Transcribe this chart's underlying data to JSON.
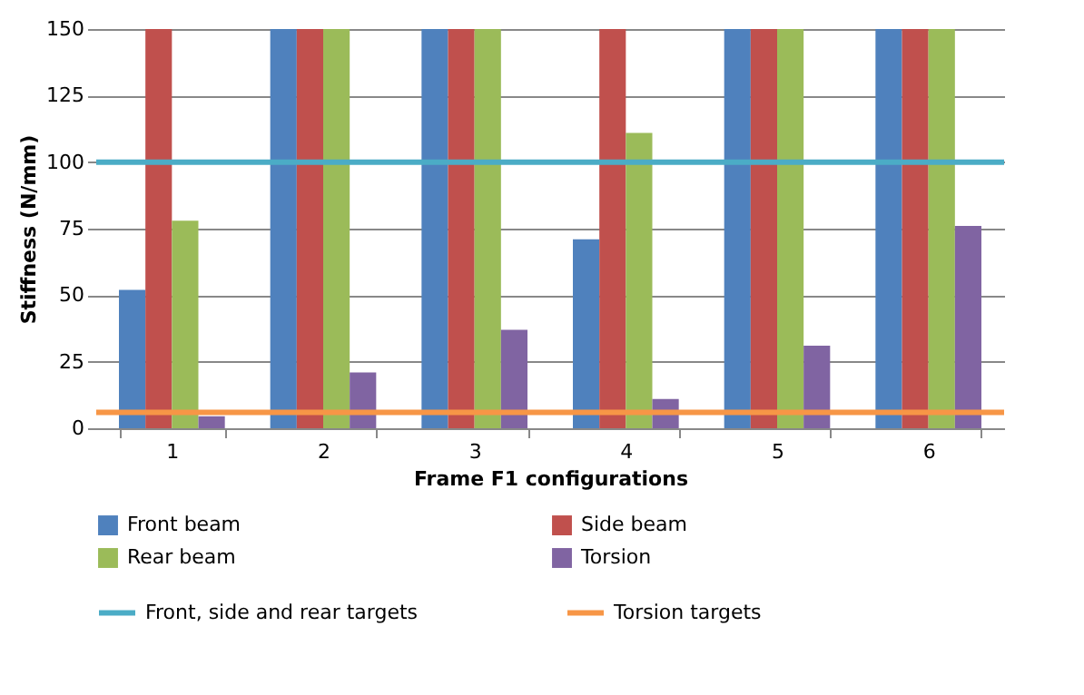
{
  "chart_data": {
    "type": "bar",
    "xlabel": "Frame F1 configurations",
    "ylabel": "Stiffness (N/mm)",
    "categories": [
      "1",
      "2",
      "3",
      "4",
      "5",
      "6"
    ],
    "series": [
      {
        "name": "Front beam",
        "color": "#4f81bd",
        "values": [
          52,
          150,
          150,
          71,
          150,
          150
        ]
      },
      {
        "name": "Side beam",
        "color": "#c0504d",
        "values": [
          150,
          150,
          150,
          150,
          150,
          150
        ]
      },
      {
        "name": "Rear beam",
        "color": "#9bbb59",
        "values": [
          78,
          150,
          150,
          111,
          150,
          150
        ]
      },
      {
        "name": "Torsion",
        "color": "#8064a2",
        "values": [
          4.5,
          21,
          37,
          11,
          31,
          76
        ]
      }
    ],
    "ref_lines": [
      {
        "axis": "y",
        "value": 100,
        "label": "Front, side and rear targets",
        "color": "#4bacc6"
      },
      {
        "axis": "y",
        "value": 6,
        "label": "Torsion targets",
        "color": "#f79646"
      }
    ],
    "ylim": [
      0,
      150
    ],
    "yticks": [
      0,
      25,
      50,
      75,
      100,
      125,
      150
    ],
    "grid": "y",
    "legend": "bottom"
  }
}
